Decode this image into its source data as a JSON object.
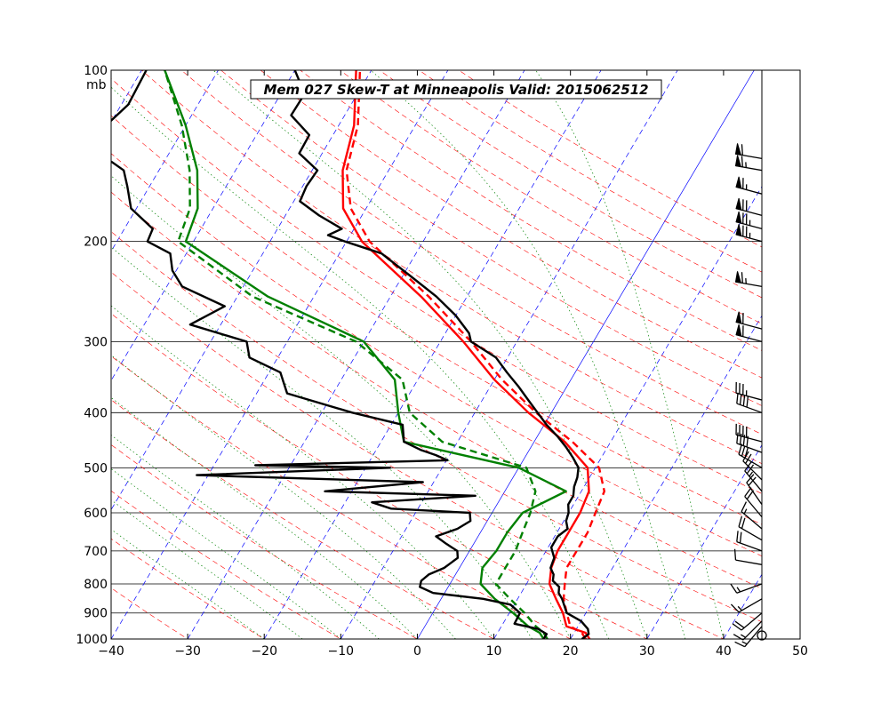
{
  "chart_data": {
    "type": "line",
    "title": "Mem 027  Skew-T at Minneapolis   Valid: 2015062512",
    "xlabel": "",
    "ylabel": "mb",
    "xlim": [
      -40,
      50
    ],
    "ylim_pressure": [
      1000,
      100
    ],
    "y_scale": "log (skewed)",
    "grid": true,
    "x_ticks": [
      "−40",
      "−30",
      "−20",
      "−10",
      "0",
      "10",
      "20",
      "30",
      "40",
      "50"
    ],
    "x_tick_values": [
      -40,
      -30,
      -20,
      -10,
      0,
      10,
      20,
      30,
      40,
      50
    ],
    "y_ticks": [
      "100",
      "200",
      "300",
      "400",
      "500",
      "600",
      "700",
      "800",
      "900",
      "1000"
    ],
    "y_tick_values": [
      100,
      200,
      300,
      400,
      500,
      600,
      700,
      800,
      900,
      1000
    ],
    "colors": {
      "temperature": "#ff0000",
      "dewpoint": "#008000",
      "observed": "#000000",
      "isotherm": "#0000ff",
      "dry_adiabat": "#ff0000",
      "moist_adiabat": "#008000",
      "mixing_ratio": "#008000"
    },
    "series": [
      {
        "kind": "temperature_solid",
        "points": [
          [
            1000,
            22.5
          ],
          [
            975,
            21.5
          ],
          [
            950,
            18.5
          ],
          [
            900,
            17
          ],
          [
            850,
            15
          ],
          [
            800,
            13
          ],
          [
            750,
            12
          ],
          [
            700,
            11.5
          ],
          [
            650,
            11.5
          ],
          [
            600,
            11.5
          ],
          [
            550,
            11
          ],
          [
            500,
            9
          ],
          [
            450,
            4
          ],
          [
            400,
            -3
          ],
          [
            350,
            -10
          ],
          [
            300,
            -17
          ],
          [
            250,
            -26
          ],
          [
            200,
            -38
          ],
          [
            175,
            -43
          ],
          [
            150,
            -46
          ],
          [
            125,
            -48
          ],
          [
            100,
            -52
          ]
        ]
      },
      {
        "kind": "temperature_dashed",
        "points": [
          [
            1000,
            22
          ],
          [
            975,
            21
          ],
          [
            950,
            19
          ],
          [
            900,
            17.5
          ],
          [
            850,
            16
          ],
          [
            800,
            15
          ],
          [
            750,
            14
          ],
          [
            700,
            14
          ],
          [
            650,
            14
          ],
          [
            600,
            13.5
          ],
          [
            550,
            13
          ],
          [
            500,
            10.5
          ],
          [
            450,
            5
          ],
          [
            400,
            -2
          ],
          [
            350,
            -9
          ],
          [
            300,
            -16
          ],
          [
            250,
            -25
          ],
          [
            200,
            -37
          ],
          [
            175,
            -42
          ],
          [
            150,
            -45.5
          ],
          [
            125,
            -47.5
          ],
          [
            100,
            -51.5
          ]
        ]
      },
      {
        "kind": "dewpoint_solid",
        "points": [
          [
            1000,
            16.5
          ],
          [
            975,
            15.5
          ],
          [
            950,
            13.5
          ],
          [
            900,
            10.5
          ],
          [
            850,
            7
          ],
          [
            800,
            4
          ],
          [
            750,
            3
          ],
          [
            700,
            3.5
          ],
          [
            650,
            3.5
          ],
          [
            600,
            4
          ],
          [
            550,
            8
          ],
          [
            500,
            0
          ],
          [
            450,
            -17
          ],
          [
            400,
            -20
          ],
          [
            350,
            -23
          ],
          [
            300,
            -30
          ],
          [
            250,
            -46
          ],
          [
            200,
            -61
          ],
          [
            175,
            -62
          ],
          [
            150,
            -65
          ],
          [
            125,
            -70
          ],
          [
            100,
            -77
          ]
        ]
      },
      {
        "kind": "dewpoint_dashed",
        "points": [
          [
            1000,
            17
          ],
          [
            975,
            16
          ],
          [
            950,
            14.5
          ],
          [
            900,
            12
          ],
          [
            850,
            9
          ],
          [
            800,
            6
          ],
          [
            750,
            6
          ],
          [
            700,
            6
          ],
          [
            650,
            5.5
          ],
          [
            600,
            5
          ],
          [
            550,
            4
          ],
          [
            500,
            1
          ],
          [
            450,
            -12
          ],
          [
            400,
            -18.5
          ],
          [
            350,
            -22
          ],
          [
            300,
            -31
          ],
          [
            250,
            -48
          ],
          [
            200,
            -62
          ],
          [
            175,
            -63
          ],
          [
            150,
            -66
          ],
          [
            125,
            -70.5
          ],
          [
            100,
            -77
          ]
        ]
      },
      {
        "kind": "observed_temperature",
        "points": [
          [
            1000,
            21.5
          ],
          [
            980,
            22
          ],
          [
            960,
            21.5
          ],
          [
            930,
            20
          ],
          [
            900,
            17.5
          ],
          [
            870,
            16.5
          ],
          [
            850,
            15.8
          ],
          [
            830,
            14.9
          ],
          [
            810,
            14.5
          ],
          [
            790,
            13.2
          ],
          [
            770,
            12.8
          ],
          [
            750,
            11.9
          ],
          [
            720,
            11.6
          ],
          [
            690,
            10.4
          ],
          [
            660,
            10.4
          ],
          [
            640,
            11.1
          ],
          [
            620,
            10.3
          ],
          [
            600,
            10
          ],
          [
            580,
            9.3
          ],
          [
            560,
            9.3
          ],
          [
            540,
            8.7
          ],
          [
            520,
            8.4
          ],
          [
            500,
            7.8
          ],
          [
            480,
            6.3
          ],
          [
            460,
            4.6
          ],
          [
            440,
            2.6
          ],
          [
            420,
            0.3
          ],
          [
            400,
            -1.8
          ],
          [
            380,
            -4
          ],
          [
            360,
            -6.3
          ],
          [
            340,
            -8.9
          ],
          [
            320,
            -11.5
          ],
          [
            300,
            -16
          ],
          [
            290,
            -16.9
          ],
          [
            270,
            -20
          ],
          [
            250,
            -24
          ],
          [
            230,
            -29
          ],
          [
            210,
            -34.5
          ],
          [
            200,
            -40.2
          ],
          [
            195,
            -42.9
          ],
          [
            190,
            -41.6
          ],
          [
            180,
            -45.6
          ],
          [
            170,
            -49.2
          ],
          [
            160,
            -49.5
          ],
          [
            150,
            -49.3
          ],
          [
            140,
            -53
          ],
          [
            130,
            -53.1
          ],
          [
            120,
            -57
          ],
          [
            110,
            -56.9
          ],
          [
            100,
            -60
          ]
        ]
      },
      {
        "kind": "observed_dewpoint",
        "points": [
          [
            1000,
            16.5
          ],
          [
            980,
            16.5
          ],
          [
            960,
            15
          ],
          [
            940,
            11.5
          ],
          [
            900,
            11.4
          ],
          [
            870,
            9.5
          ],
          [
            850,
            5.5
          ],
          [
            830,
            -1.5
          ],
          [
            810,
            -3.7
          ],
          [
            790,
            -4
          ],
          [
            770,
            -3.5
          ],
          [
            750,
            -2
          ],
          [
            720,
            -1
          ],
          [
            700,
            -1.6
          ],
          [
            680,
            -3.6
          ],
          [
            660,
            -5.5
          ],
          [
            640,
            -3.3
          ],
          [
            620,
            -2.2
          ],
          [
            600,
            -2.9
          ],
          [
            590,
            -13.5
          ],
          [
            575,
            -16.5
          ],
          [
            560,
            -3.5
          ],
          [
            550,
            -23.5
          ],
          [
            530,
            -11.4
          ],
          [
            515,
            -41.5
          ],
          [
            500,
            -16.8
          ],
          [
            495,
            -34.6
          ],
          [
            485,
            -9.9
          ],
          [
            475,
            -11.8
          ],
          [
            465,
            -14.2
          ],
          [
            450,
            -17
          ],
          [
            420,
            -18.5
          ],
          [
            400,
            -26
          ],
          [
            370,
            -36
          ],
          [
            340,
            -38.5
          ],
          [
            320,
            -43.7
          ],
          [
            300,
            -45.3
          ],
          [
            280,
            -54
          ],
          [
            260,
            -50.9
          ],
          [
            240,
            -58
          ],
          [
            225,
            -60.5
          ],
          [
            210,
            -62.1
          ],
          [
            200,
            -66
          ],
          [
            190,
            -66.3
          ],
          [
            175,
            -70.7
          ],
          [
            160,
            -72.9
          ],
          [
            150,
            -74.6
          ],
          [
            145,
            -76.8
          ],
          [
            140,
            -80.4
          ],
          [
            135,
            -79.3
          ],
          [
            125,
            -80.4
          ],
          [
            115,
            -79.1
          ],
          [
            100,
            -79.4
          ]
        ]
      }
    ],
    "wind_profile": [
      {
        "pressure": 1000,
        "calm": true
      },
      {
        "pressure": 950,
        "speed_kt": 15,
        "dir_deg": 220
      },
      {
        "pressure": 930,
        "speed_kt": 15,
        "dir_deg": 225
      },
      {
        "pressure": 900,
        "speed_kt": 20,
        "dir_deg": 230
      },
      {
        "pressure": 850,
        "speed_kt": 15,
        "dir_deg": 240
      },
      {
        "pressure": 800,
        "speed_kt": 15,
        "dir_deg": 250
      },
      {
        "pressure": 740,
        "speed_kt": 10,
        "dir_deg": 280
      },
      {
        "pressure": 700,
        "speed_kt": 20,
        "dir_deg": 290
      },
      {
        "pressure": 670,
        "speed_kt": 20,
        "dir_deg": 300
      },
      {
        "pressure": 640,
        "speed_kt": 15,
        "dir_deg": 310
      },
      {
        "pressure": 610,
        "speed_kt": 20,
        "dir_deg": 320
      },
      {
        "pressure": 580,
        "speed_kt": 20,
        "dir_deg": 325
      },
      {
        "pressure": 550,
        "speed_kt": 25,
        "dir_deg": 320
      },
      {
        "pressure": 525,
        "speed_kt": 20,
        "dir_deg": 315
      },
      {
        "pressure": 500,
        "speed_kt": 30,
        "dir_deg": 300
      },
      {
        "pressure": 470,
        "speed_kt": 40,
        "dir_deg": 290
      },
      {
        "pressure": 450,
        "speed_kt": 40,
        "dir_deg": 285
      },
      {
        "pressure": 400,
        "speed_kt": 40,
        "dir_deg": 290
      },
      {
        "pressure": 380,
        "speed_kt": 35,
        "dir_deg": 285
      },
      {
        "pressure": 300,
        "speed_kt": 60,
        "dir_deg": 285
      },
      {
        "pressure": 285,
        "speed_kt": 60,
        "dir_deg": 285
      },
      {
        "pressure": 240,
        "speed_kt": 65,
        "dir_deg": 280
      },
      {
        "pressure": 200,
        "speed_kt": 75,
        "dir_deg": 285
      },
      {
        "pressure": 190,
        "speed_kt": 75,
        "dir_deg": 285
      },
      {
        "pressure": 180,
        "speed_kt": 70,
        "dir_deg": 285
      },
      {
        "pressure": 165,
        "speed_kt": 65,
        "dir_deg": 285
      },
      {
        "pressure": 150,
        "speed_kt": 65,
        "dir_deg": 280
      },
      {
        "pressure": 143,
        "speed_kt": 60,
        "dir_deg": 280
      }
    ]
  }
}
